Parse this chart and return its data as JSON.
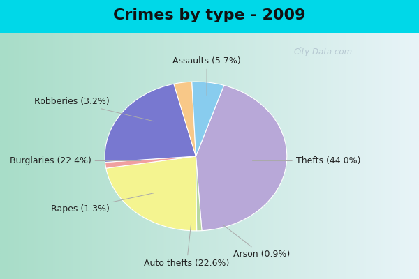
{
  "title": "Crimes by type - 2009",
  "slices": [
    {
      "label": "Thefts",
      "pct": 44.0,
      "color": "#b8a8d8"
    },
    {
      "label": "Arson",
      "pct": 0.9,
      "color": "#b8d8a0"
    },
    {
      "label": "Auto thefts",
      "pct": 22.6,
      "color": "#f4f490"
    },
    {
      "label": "Rapes",
      "pct": 1.3,
      "color": "#f0a0a0"
    },
    {
      "label": "Burglaries",
      "pct": 22.4,
      "color": "#7878d0"
    },
    {
      "label": "Robberies",
      "pct": 3.2,
      "color": "#f8c888"
    },
    {
      "label": "Assaults",
      "pct": 5.7,
      "color": "#88ccee"
    }
  ],
  "startangle": 72,
  "title_fontsize": 16,
  "label_fontsize": 9,
  "bg_outer": "#00d8e8",
  "bg_chart_left": "#a8ddc8",
  "bg_chart_right": "#e8f0f8",
  "watermark": "City-Data.com"
}
